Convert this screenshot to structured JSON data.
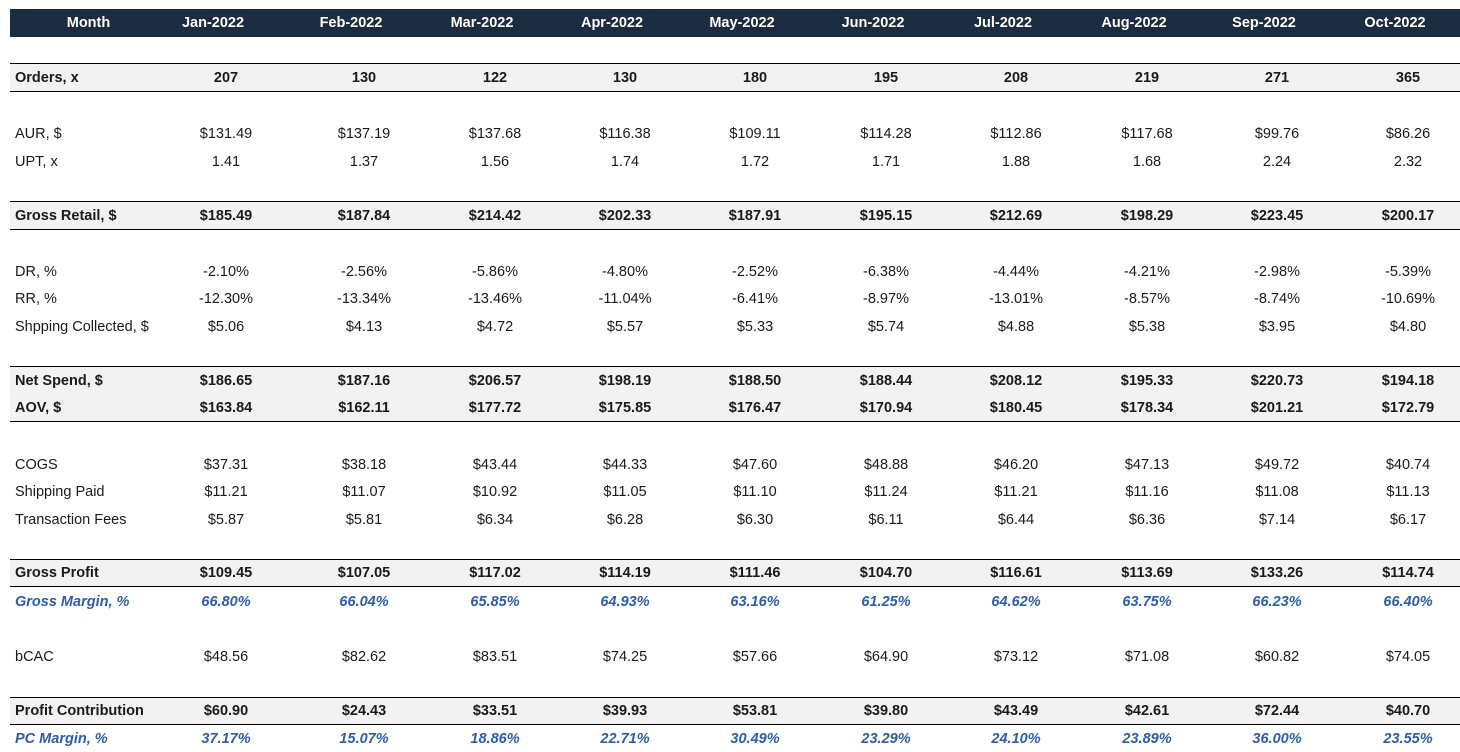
{
  "header": {
    "label": "Month",
    "months": [
      "Jan-2022",
      "Feb-2022",
      "Mar-2022",
      "Apr-2022",
      "May-2022",
      "Jun-2022",
      "Jul-2022",
      "Aug-2022",
      "Sep-2022",
      "Oct-2022"
    ]
  },
  "rows": [
    {
      "label": "Orders, x",
      "values": [
        "207",
        "130",
        "122",
        "130",
        "180",
        "195",
        "208",
        "219",
        "271",
        "365"
      ]
    },
    {
      "label": "AUR, $",
      "values": [
        "$131.49",
        "$137.19",
        "$137.68",
        "$116.38",
        "$109.11",
        "$114.28",
        "$112.86",
        "$117.68",
        "$99.76",
        "$86.26"
      ]
    },
    {
      "label": "UPT, x",
      "values": [
        "1.41",
        "1.37",
        "1.56",
        "1.74",
        "1.72",
        "1.71",
        "1.88",
        "1.68",
        "2.24",
        "2.32"
      ]
    },
    {
      "label": "Gross Retail, $",
      "values": [
        "$185.49",
        "$187.84",
        "$214.42",
        "$202.33",
        "$187.91",
        "$195.15",
        "$212.69",
        "$198.29",
        "$223.45",
        "$200.17"
      ]
    },
    {
      "label": "DR, %",
      "values": [
        "-2.10%",
        "-2.56%",
        "-5.86%",
        "-4.80%",
        "-2.52%",
        "-6.38%",
        "-4.44%",
        "-4.21%",
        "-2.98%",
        "-5.39%"
      ]
    },
    {
      "label": "RR, %",
      "values": [
        "-12.30%",
        "-13.34%",
        "-13.46%",
        "-11.04%",
        "-6.41%",
        "-8.97%",
        "-13.01%",
        "-8.57%",
        "-8.74%",
        "-10.69%"
      ]
    },
    {
      "label": "Shpping Collected, $",
      "values": [
        "$5.06",
        "$4.13",
        "$4.72",
        "$5.57",
        "$5.33",
        "$5.74",
        "$4.88",
        "$5.38",
        "$3.95",
        "$4.80"
      ]
    },
    {
      "label": "Net Spend, $",
      "values": [
        "$186.65",
        "$187.16",
        "$206.57",
        "$198.19",
        "$188.50",
        "$188.44",
        "$208.12",
        "$195.33",
        "$220.73",
        "$194.18"
      ]
    },
    {
      "label": "AOV, $",
      "values": [
        "$163.84",
        "$162.11",
        "$177.72",
        "$175.85",
        "$176.47",
        "$170.94",
        "$180.45",
        "$178.34",
        "$201.21",
        "$172.79"
      ]
    },
    {
      "label": "COGS",
      "values": [
        "$37.31",
        "$38.18",
        "$43.44",
        "$44.33",
        "$47.60",
        "$48.88",
        "$46.20",
        "$47.13",
        "$49.72",
        "$40.74"
      ]
    },
    {
      "label": "Shipping Paid",
      "values": [
        "$11.21",
        "$11.07",
        "$10.92",
        "$11.05",
        "$11.10",
        "$11.24",
        "$11.21",
        "$11.16",
        "$11.08",
        "$11.13"
      ]
    },
    {
      "label": "Transaction Fees",
      "values": [
        "$5.87",
        "$5.81",
        "$6.34",
        "$6.28",
        "$6.30",
        "$6.11",
        "$6.44",
        "$6.36",
        "$7.14",
        "$6.17"
      ]
    },
    {
      "label": "Gross Profit",
      "values": [
        "$109.45",
        "$107.05",
        "$117.02",
        "$114.19",
        "$111.46",
        "$104.70",
        "$116.61",
        "$113.69",
        "$133.26",
        "$114.74"
      ]
    },
    {
      "label": "Gross Margin, %",
      "values": [
        "66.80%",
        "66.04%",
        "65.85%",
        "64.93%",
        "63.16%",
        "61.25%",
        "64.62%",
        "63.75%",
        "66.23%",
        "66.40%"
      ]
    },
    {
      "label": "bCAC",
      "values": [
        "$48.56",
        "$82.62",
        "$83.51",
        "$74.25",
        "$57.66",
        "$64.90",
        "$73.12",
        "$71.08",
        "$60.82",
        "$74.05"
      ]
    },
    {
      "label": "Profit Contribution",
      "values": [
        "$60.90",
        "$24.43",
        "$33.51",
        "$39.93",
        "$53.81",
        "$39.80",
        "$43.49",
        "$42.61",
        "$72.44",
        "$40.70"
      ]
    },
    {
      "label": "PC Margin, %",
      "values": [
        "37.17%",
        "15.07%",
        "18.86%",
        "22.71%",
        "30.49%",
        "23.29%",
        "24.10%",
        "23.89%",
        "36.00%",
        "23.55%"
      ]
    }
  ],
  "colors": {
    "header_bg": "#1b2b40",
    "header_text": "#ffffff",
    "highlight_bg": "#f2f2f2",
    "margin_text": "#2e5ea8"
  }
}
